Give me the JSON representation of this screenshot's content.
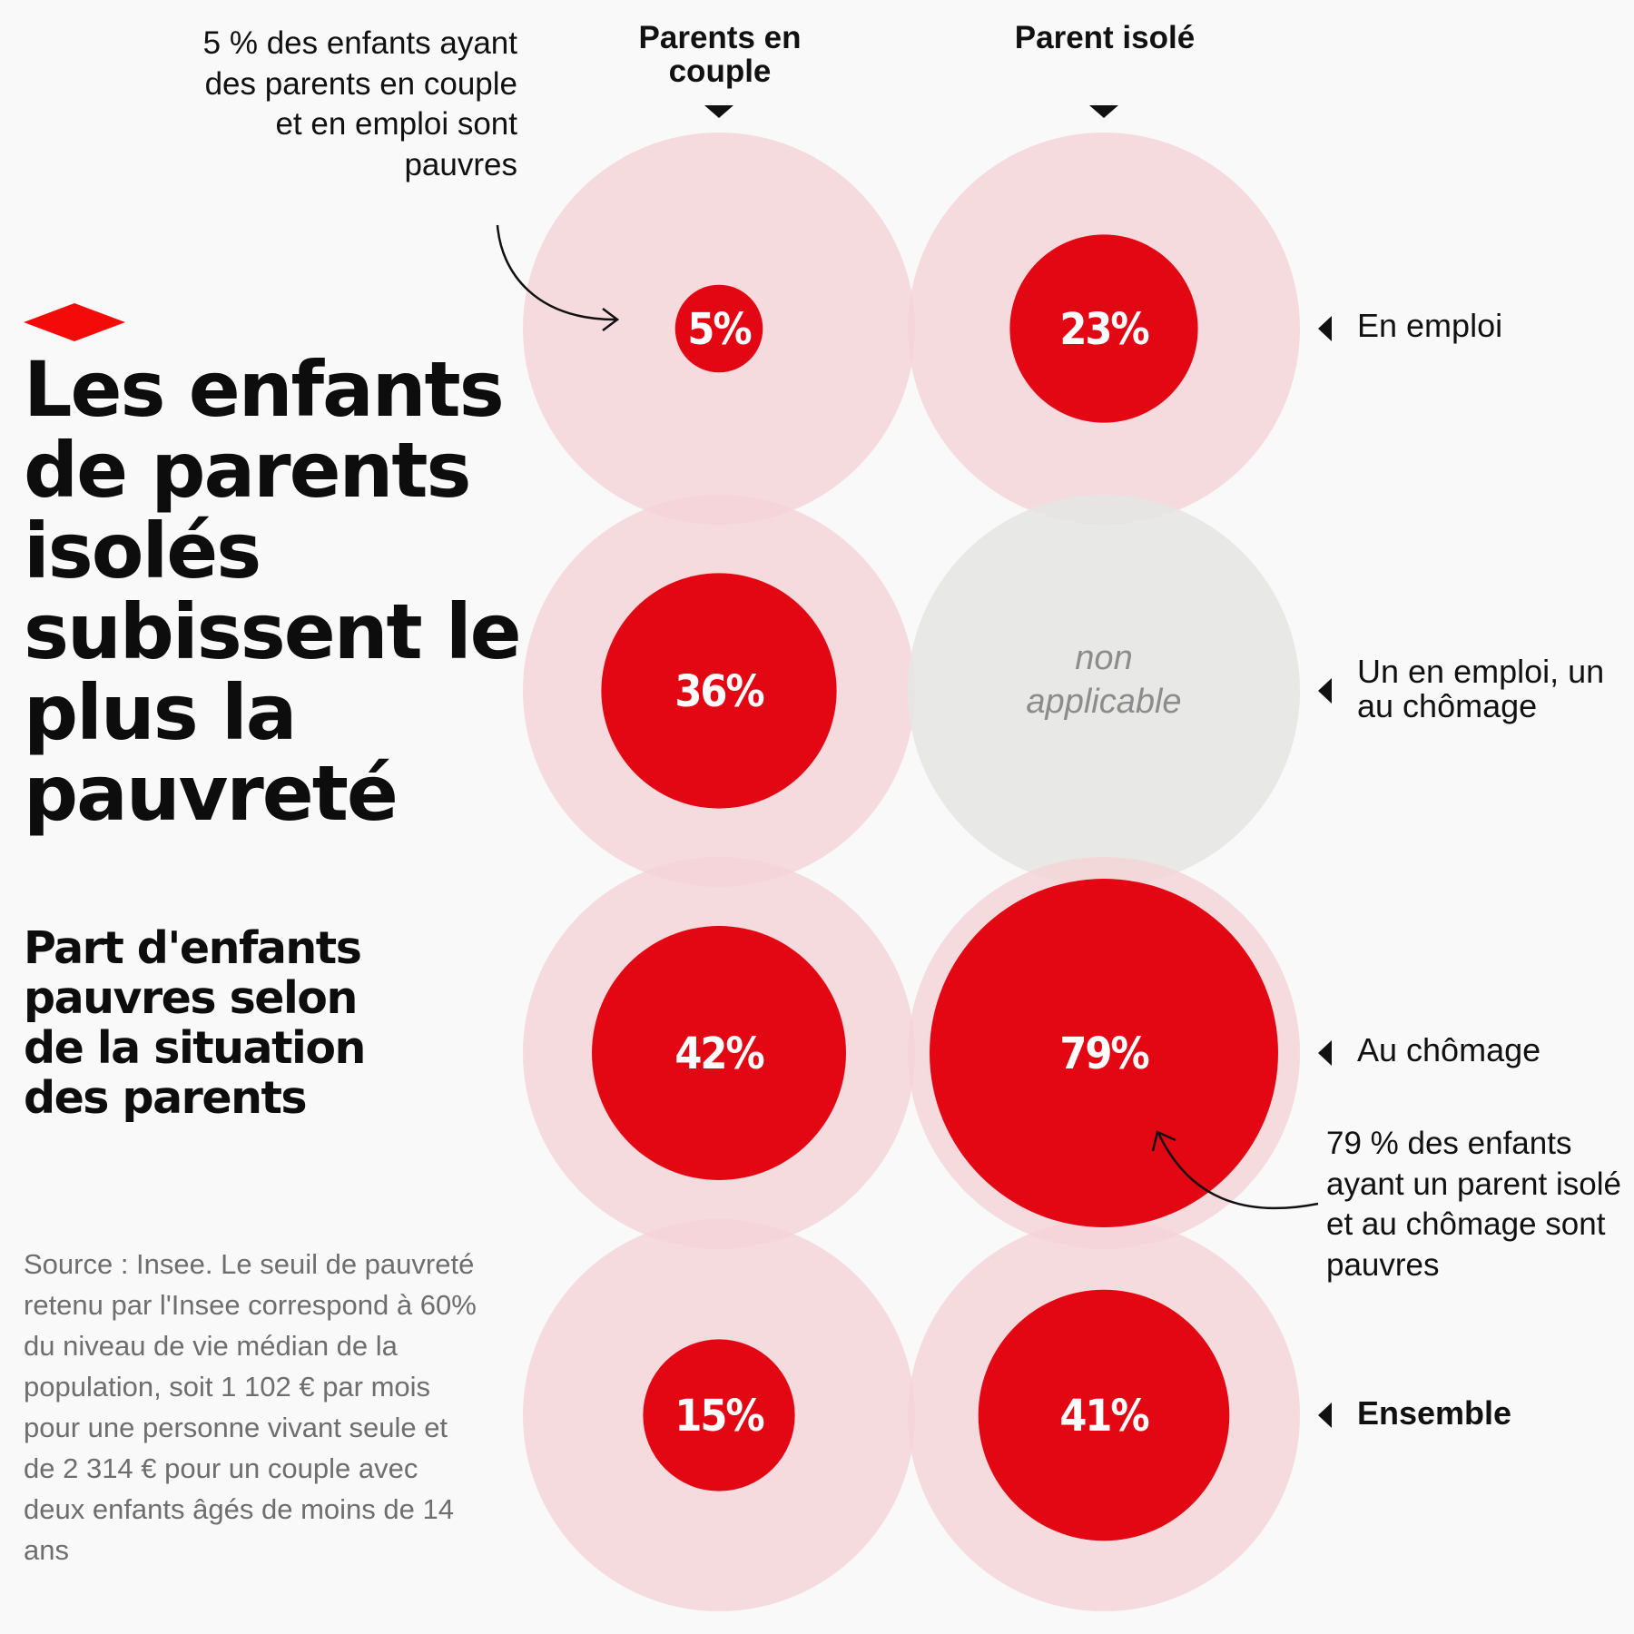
{
  "title": "Les enfants de parents isolés subissent le plus la pauvreté",
  "subtitle": "Part d'enfants pauvres selon de la situation des parents",
  "source": "Source : Insee. Le seuil de pauvreté retenu par l'Insee correspond à 60% du niveau de vie médian de la population, soit 1 102 € par mois pour une personne vivant seule et de 2 314 € pour un couple avec deux enfants âgés de moins de 14 ans",
  "annotations": {
    "top": "5 % des enfants ayant des parents en couple et en emploi sont pauvres",
    "bottom": "79 % des enfants ayant un parent isolé et au chômage sont pauvres"
  },
  "colors": {
    "accent": "#e30613",
    "halo": "#f5d3d7",
    "na": "#e6e6e4",
    "na_text": "#8c8c8c"
  },
  "chart_data": {
    "type": "bubble-grid",
    "columns": [
      "Parents en couple",
      "Parent isolé"
    ],
    "rows": [
      "En emploi",
      "Un en emploi, un au chômage",
      "Au chômage",
      "Ensemble"
    ],
    "bold_rows": [
      "Ensemble"
    ],
    "max_value": 100,
    "values": [
      [
        5,
        23
      ],
      [
        36,
        null
      ],
      [
        42,
        79
      ],
      [
        15,
        41
      ]
    ],
    "labels": [
      [
        "5%",
        "23%"
      ],
      [
        "36%",
        "non applicable"
      ],
      [
        "42%",
        "79%"
      ],
      [
        "15%",
        "41%"
      ]
    ]
  }
}
